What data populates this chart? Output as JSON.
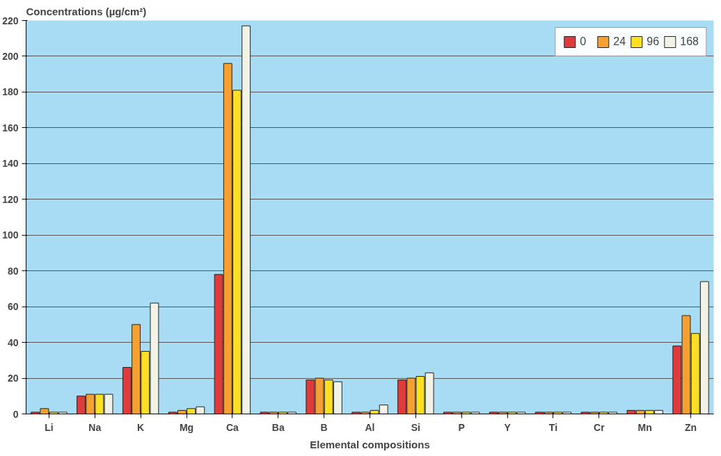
{
  "chart_data": {
    "type": "bar",
    "ylabel": "Concentrations (µg/cm²)",
    "xlabel": "Elemental compositions",
    "categories": [
      "Li",
      "Na",
      "K",
      "Mg",
      "Ca",
      "Ba",
      "B",
      "Al",
      "Si",
      "P",
      "Y",
      "Ti",
      "Cr",
      "Mn",
      "Zn"
    ],
    "series": [
      {
        "name": "0",
        "color": "#e03a3a",
        "values": [
          1,
          10,
          26,
          1,
          78,
          1,
          19,
          1,
          19,
          1,
          1,
          1,
          1,
          2,
          38
        ]
      },
      {
        "name": "24",
        "color": "#f5a030",
        "values": [
          3,
          11,
          50,
          2,
          196,
          1,
          20,
          1,
          20,
          1,
          1,
          1,
          1,
          2,
          55
        ]
      },
      {
        "name": "96",
        "color": "#ffe020",
        "values": [
          1,
          11,
          35,
          3,
          181,
          1,
          19,
          2,
          21,
          1,
          1,
          1,
          1,
          2,
          45
        ]
      },
      {
        "name": "168",
        "color": "#f2f2e6",
        "values": [
          1,
          11,
          62,
          4,
          217,
          1,
          18,
          5,
          23,
          1,
          1,
          1,
          1,
          2,
          74
        ]
      }
    ],
    "ylim": [
      0,
      220
    ],
    "yticks": [
      0,
      20,
      40,
      60,
      80,
      100,
      120,
      140,
      160,
      180,
      200,
      220
    ],
    "grid": "y",
    "legend": "top right"
  }
}
